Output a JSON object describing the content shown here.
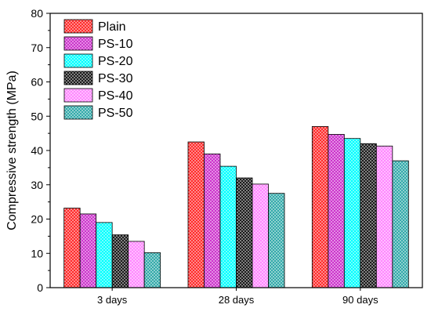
{
  "chart_data": {
    "type": "bar",
    "title": "",
    "xlabel": "",
    "ylabel": "Compressive strength (MPa)",
    "ylim": [
      0,
      80
    ],
    "yticks": [
      0,
      10,
      20,
      30,
      40,
      50,
      60,
      70,
      80
    ],
    "grid": false,
    "legend_position": "top-left",
    "categories": [
      "3 days",
      "28 days",
      "90 days"
    ],
    "series": [
      {
        "name": "Plain",
        "color": "#ff2b2b",
        "values": [
          23.2,
          42.5,
          47.0
        ]
      },
      {
        "name": "PS-10",
        "color": "#cc33cc",
        "values": [
          21.5,
          39.0,
          44.7
        ]
      },
      {
        "name": "PS-20",
        "color": "#00ffff",
        "values": [
          19.0,
          35.4,
          43.5
        ]
      },
      {
        "name": "PS-30",
        "color": "#1a1a1a",
        "values": [
          15.4,
          32.0,
          42.0
        ]
      },
      {
        "name": "PS-40",
        "color": "#ff88ff",
        "values": [
          13.5,
          30.2,
          41.3
        ]
      },
      {
        "name": "PS-50",
        "color": "#33aaaa",
        "values": [
          10.2,
          27.5,
          37.0
        ]
      }
    ]
  }
}
